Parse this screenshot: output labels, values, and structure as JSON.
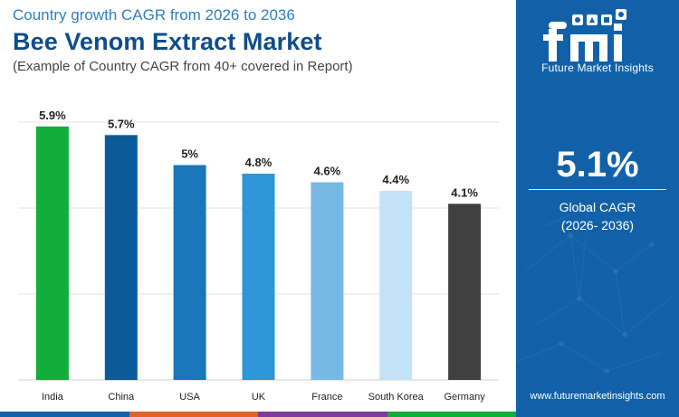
{
  "header": {
    "subtitle_top": "Country growth CAGR from 2026 to 2036",
    "title": "Bee Venom Extract Market",
    "note": "(Example of Country CAGR from 40+ covered in Report)"
  },
  "chart_data": {
    "type": "bar",
    "categories": [
      "India",
      "China",
      "USA",
      "UK",
      "France",
      "South Korea",
      "Germany"
    ],
    "values": [
      5.9,
      5.7,
      5.0,
      4.8,
      4.6,
      4.4,
      4.1
    ],
    "value_labels": [
      "5.9%",
      "5.7%",
      "5%",
      "4.8%",
      "4.6%",
      "4.4%",
      "4.1%"
    ],
    "bar_colors": [
      "#12ad3a",
      "#0d5a98",
      "#1a76b8",
      "#2f96da",
      "#76b9e6",
      "#c4e2f6",
      "#404040"
    ],
    "ylim": [
      0,
      6
    ],
    "grid": true
  },
  "side_panel": {
    "logo_text": "Future Market Insights",
    "kpi_value": "5.1%",
    "kpi_label_1": "Global CAGR",
    "kpi_label_2": "(2026- 2036)",
    "website": "www.futuremarketinsights.com"
  },
  "colors": {
    "accent": "#1261a8",
    "title": "#0e4d8a",
    "subtitle": "#2f7fc1",
    "bottom_bar": [
      "#1261a8",
      "#e0632a",
      "#7a3e9a",
      "#12ad3a"
    ]
  },
  "icons": [
    "logo-mark-icon",
    "globe-icon"
  ]
}
